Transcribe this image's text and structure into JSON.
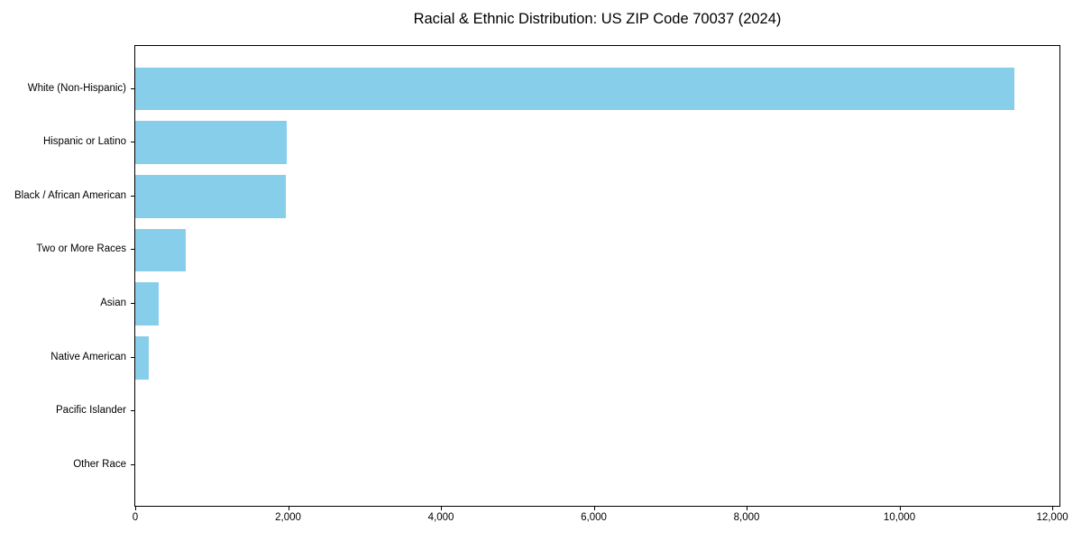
{
  "chart_data": {
    "type": "bar",
    "orientation": "horizontal",
    "title": "Racial & Ethnic Distribution: US ZIP Code 70037 (2024)",
    "categories": [
      "White (Non-Hispanic)",
      "Hispanic or Latino",
      "Black / African American",
      "Two or More Races",
      "Asian",
      "Native American",
      "Pacific Islander",
      "Other Race"
    ],
    "values": [
      11500,
      1980,
      1975,
      660,
      305,
      180,
      0,
      0
    ],
    "xlabel": "",
    "ylabel": "",
    "xlim": [
      0,
      12094
    ],
    "x_ticks": [
      0,
      2000,
      4000,
      6000,
      8000,
      10000,
      12000
    ],
    "x_tick_labels": [
      "0",
      "2,000",
      "4,000",
      "6,000",
      "8,000",
      "10,000",
      "12,000"
    ],
    "bar_color": "#87CEEB",
    "frame_color": "#000000",
    "grid": false,
    "legend": null
  }
}
